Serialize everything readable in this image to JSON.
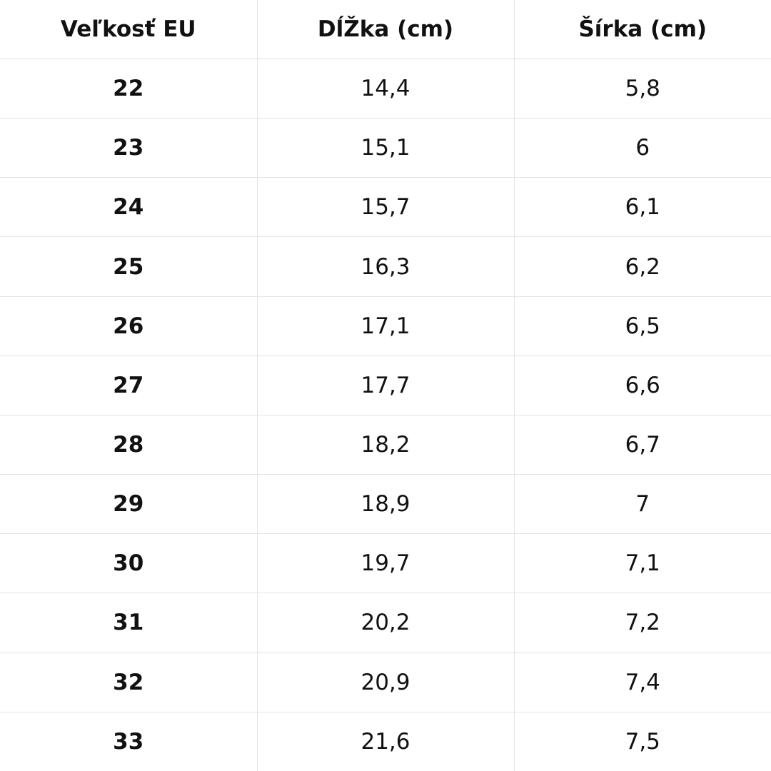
{
  "table": {
    "header": [
      "Veľkosť EU",
      "DĺŽka (cm)",
      "Šírka (cm)"
    ],
    "rows": [
      [
        "22",
        "14,4",
        "5,8"
      ],
      [
        "23",
        "15,1",
        "6"
      ],
      [
        "24",
        "15,7",
        "6,1"
      ],
      [
        "25",
        "16,3",
        "6,2"
      ],
      [
        "26",
        "17,1",
        "6,5"
      ],
      [
        "27",
        "17,7",
        "6,6"
      ],
      [
        "28",
        "18,2",
        "6,7"
      ],
      [
        "29",
        "18,9",
        "7"
      ],
      [
        "30",
        "19,7",
        "7,1"
      ],
      [
        "31",
        "20,2",
        "7,2"
      ],
      [
        "32",
        "20,9",
        "7,4"
      ],
      [
        "33",
        "21,6",
        "7,5"
      ]
    ]
  }
}
